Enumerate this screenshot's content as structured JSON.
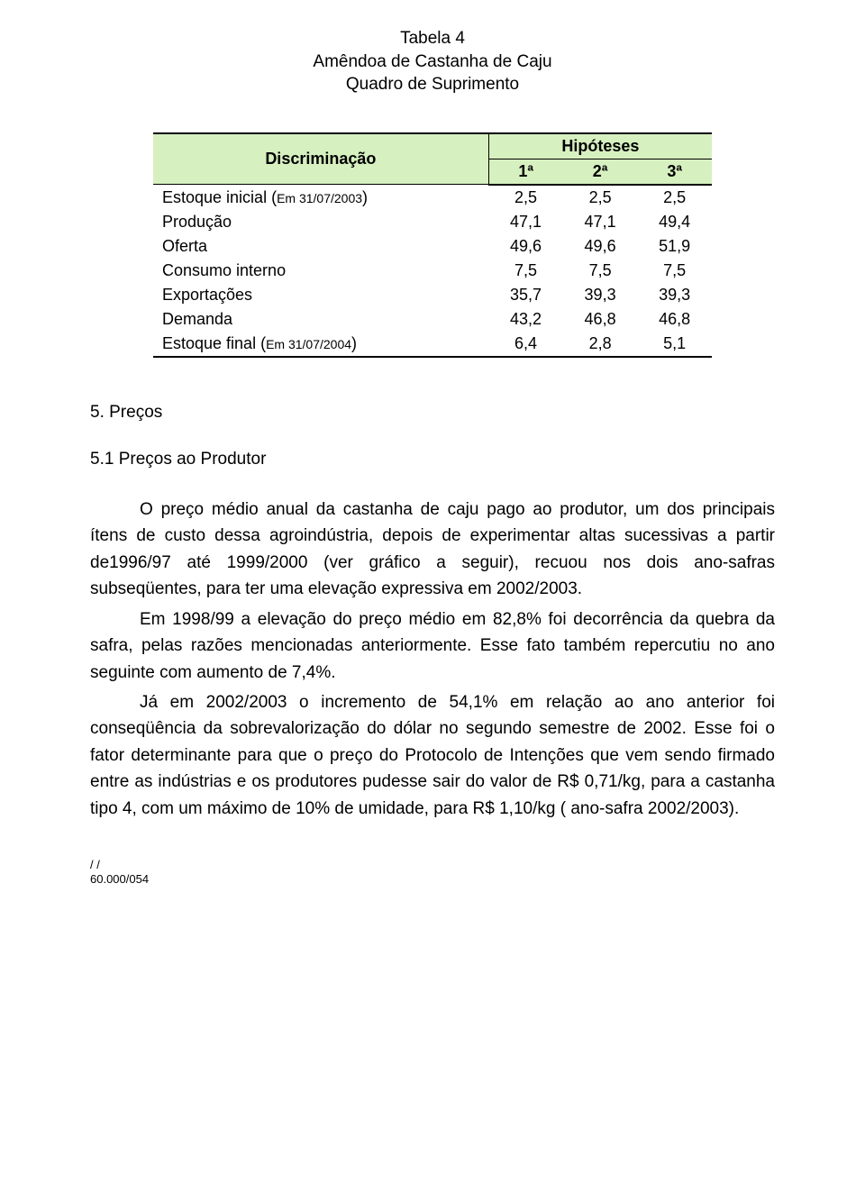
{
  "title": {
    "line1": "Tabela 4",
    "line2": "Amêndoa de Castanha de Caju",
    "line3": "Quadro de Suprimento"
  },
  "table": {
    "header": {
      "disc": "Discriminação",
      "hip": "Hipóteses",
      "cols": [
        "1ª",
        "2ª",
        "3ª"
      ]
    },
    "rows": [
      {
        "label": "Estoque inicial (",
        "small": "Em 31/07/2003",
        "label_end": ")",
        "vals": [
          "2,5",
          "2,5",
          "2,5"
        ]
      },
      {
        "label": "Produção",
        "vals": [
          "47,1",
          "47,1",
          "49,4"
        ]
      },
      {
        "label": "Oferta",
        "vals": [
          "49,6",
          "49,6",
          "51,9"
        ]
      },
      {
        "label": "Consumo interno",
        "vals": [
          "7,5",
          "7,5",
          "7,5"
        ]
      },
      {
        "label": "Exportações",
        "vals": [
          "35,7",
          "39,3",
          "39,3"
        ]
      },
      {
        "label": "Demanda",
        "vals": [
          "43,2",
          "46,8",
          "46,8"
        ]
      },
      {
        "label": "Estoque final (",
        "small": "Em 31/07/2004",
        "label_end": ")",
        "vals": [
          "6,4",
          "2,8",
          "5,1"
        ]
      }
    ]
  },
  "section": "5. Preços",
  "subsection": "5.1 Preços ao Produtor",
  "paragraphs": [
    "O preço médio anual da castanha de caju pago ao produtor, um dos principais ítens de custo dessa agroindústria, depois de experimentar altas sucessivas a partir de1996/97 até 1999/2000 (ver gráfico a seguir), recuou nos dois ano-safras subseqüentes, para ter  uma elevação expressiva em 2002/2003.",
    "Em 1998/99 a elevação do preço médio em  82,8% foi decorrência da quebra da safra, pelas razões mencionadas anteriormente. Esse fato também repercutiu no ano seguinte com aumento de 7,4%.",
    "Já em 2002/2003 o incremento de 54,1% em relação ao ano anterior foi conseqüência da sobrevalorização do dólar no segundo semestre de 2002. Esse foi o fator determinante para que o preço do Protocolo de Intenções que vem sendo firmado entre as indústrias  e os produtores pudesse sair do valor de  R$ 0,71/kg, para a castanha tipo 4, com um máximo de 10% de umidade, para R$ 1,10/kg ( ano-safra 2002/2003)."
  ],
  "footer": {
    "l1": "/   /",
    "l2": "60.000/054"
  }
}
